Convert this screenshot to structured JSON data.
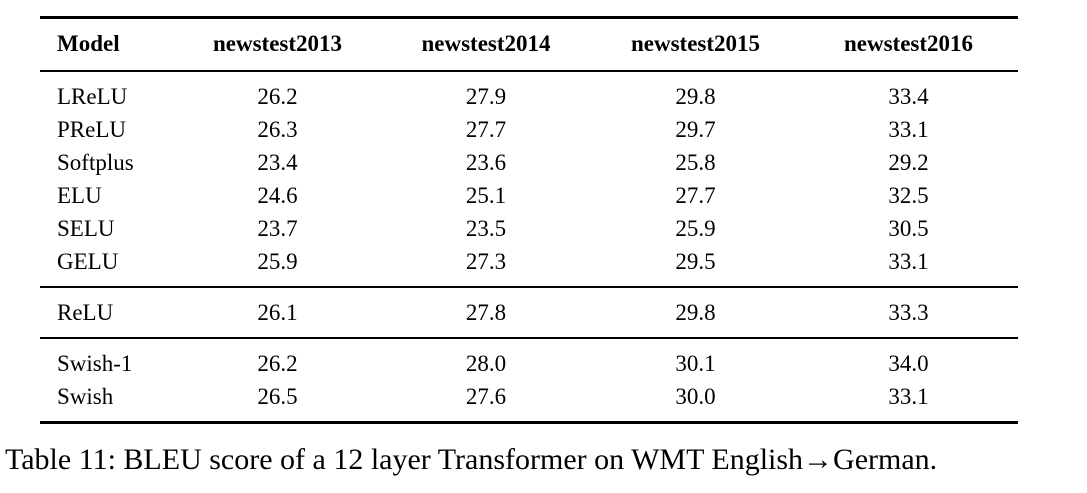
{
  "table": {
    "columns": [
      "Model",
      "newstest2013",
      "newstest2014",
      "newstest2015",
      "newstest2016"
    ],
    "groups": [
      {
        "rows": [
          {
            "model": "LReLU",
            "values": [
              "26.2",
              "27.9",
              "29.8",
              "33.4"
            ]
          },
          {
            "model": "PReLU",
            "values": [
              "26.3",
              "27.7",
              "29.7",
              "33.1"
            ]
          },
          {
            "model": "Softplus",
            "values": [
              "23.4",
              "23.6",
              "25.8",
              "29.2"
            ]
          },
          {
            "model": "ELU",
            "values": [
              "24.6",
              "25.1",
              "27.7",
              "32.5"
            ]
          },
          {
            "model": "SELU",
            "values": [
              "23.7",
              "23.5",
              "25.9",
              "30.5"
            ]
          },
          {
            "model": "GELU",
            "values": [
              "25.9",
              "27.3",
              "29.5",
              "33.1"
            ]
          }
        ]
      },
      {
        "rows": [
          {
            "model": "ReLU",
            "values": [
              "26.1",
              "27.8",
              "29.8",
              "33.3"
            ]
          }
        ]
      },
      {
        "rows": [
          {
            "model": "Swish-1",
            "values": [
              "26.2",
              "28.0",
              "30.1",
              "34.0"
            ]
          },
          {
            "model": "Swish",
            "values": [
              "26.5",
              "27.6",
              "30.0",
              "33.1"
            ]
          }
        ]
      }
    ]
  },
  "caption": "Table 11: BLEU score of a 12 layer Transformer on WMT English→German.",
  "colors": {
    "text": "#000000",
    "background": "#ffffff",
    "rule": "#000000"
  }
}
